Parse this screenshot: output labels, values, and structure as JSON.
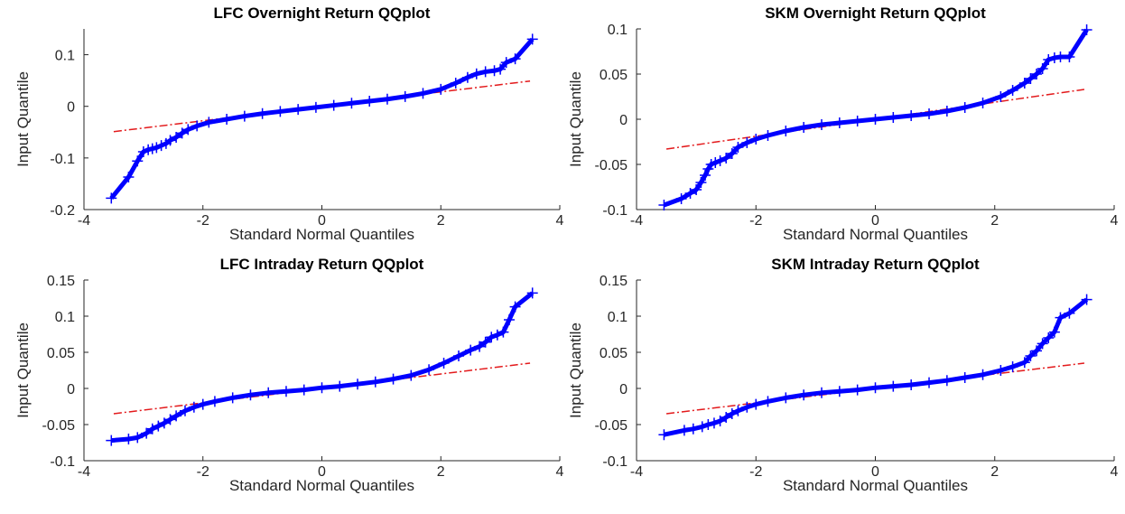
{
  "chart_data": [
    {
      "type": "scatter",
      "title": "LFC Overnight Return QQplot",
      "xlabel": "Standard Normal Quantiles",
      "ylabel": "Input Quantile",
      "xlim": [
        -4,
        4
      ],
      "ylim": [
        -0.2,
        0.15
      ],
      "xticks": [
        -4,
        -2,
        0,
        2,
        4
      ],
      "xtick_labels": [
        "-4",
        "-2",
        "0",
        "2",
        "4"
      ],
      "yticks": [
        -0.2,
        -0.1,
        0,
        0.1
      ],
      "ytick_labels": [
        "-0.2",
        "-0.1",
        "0",
        "0.1"
      ],
      "reference_line": {
        "x": [
          -3.5,
          3.5
        ],
        "y": [
          -0.049,
          0.049
        ]
      },
      "series": [
        {
          "marker": "+",
          "x": [
            -3.54,
            -3.25,
            -3.1,
            -3.0,
            -2.92,
            -2.85,
            -2.78,
            -2.7,
            -2.62,
            -2.55,
            -2.45,
            -2.35,
            -2.25,
            -2.1,
            -1.9,
            -1.6,
            -1.3,
            -1.0,
            -0.7,
            -0.4,
            -0.1,
            0.2,
            0.5,
            0.8,
            1.1,
            1.4,
            1.7,
            2.0,
            2.25,
            2.45,
            2.6,
            2.75,
            2.9,
            3.0,
            3.1,
            3.25,
            3.54
          ],
          "y": [
            -0.178,
            -0.137,
            -0.106,
            -0.088,
            -0.084,
            -0.082,
            -0.08,
            -0.076,
            -0.072,
            -0.066,
            -0.06,
            -0.052,
            -0.045,
            -0.038,
            -0.031,
            -0.025,
            -0.019,
            -0.014,
            -0.01,
            -0.006,
            -0.002,
            0.002,
            0.006,
            0.01,
            0.014,
            0.019,
            0.025,
            0.033,
            0.045,
            0.056,
            0.063,
            0.067,
            0.069,
            0.072,
            0.085,
            0.092,
            0.13
          ]
        }
      ],
      "colors": {
        "marker": "#0000ff",
        "reference": "#e31a1c"
      }
    },
    {
      "type": "scatter",
      "title": "SKM Overnight Return QQplot",
      "xlabel": "Standard Normal Quantiles",
      "ylabel": "Input Quantile",
      "xlim": [
        -4,
        4
      ],
      "ylim": [
        -0.1,
        0.1
      ],
      "xticks": [
        -4,
        -2,
        0,
        2,
        4
      ],
      "xtick_labels": [
        "-4",
        "-2",
        "0",
        "2",
        "4"
      ],
      "yticks": [
        -0.1,
        -0.05,
        0,
        0.05,
        0.1
      ],
      "ytick_labels": [
        "-0.1",
        "-0.05",
        "0",
        "0.05",
        "0.1"
      ],
      "reference_line": {
        "x": [
          -3.5,
          3.5
        ],
        "y": [
          -0.033,
          0.033
        ]
      },
      "series": [
        {
          "marker": "+",
          "x": [
            -3.54,
            -3.25,
            -3.1,
            -3.0,
            -2.92,
            -2.85,
            -2.8,
            -2.75,
            -2.68,
            -2.6,
            -2.5,
            -2.4,
            -2.3,
            -2.15,
            -2.0,
            -1.8,
            -1.5,
            -1.2,
            -0.9,
            -0.6,
            -0.3,
            0.0,
            0.3,
            0.6,
            0.9,
            1.2,
            1.5,
            1.8,
            2.1,
            2.3,
            2.5,
            2.6,
            2.7,
            2.8,
            2.9,
            3.0,
            3.1,
            3.25,
            3.54
          ],
          "y": [
            -0.095,
            -0.088,
            -0.082,
            -0.078,
            -0.07,
            -0.062,
            -0.055,
            -0.05,
            -0.048,
            -0.046,
            -0.043,
            -0.038,
            -0.031,
            -0.026,
            -0.022,
            -0.018,
            -0.013,
            -0.009,
            -0.006,
            -0.004,
            -0.002,
            0.0,
            0.002,
            0.004,
            0.006,
            0.009,
            0.013,
            0.018,
            0.025,
            0.032,
            0.04,
            0.045,
            0.05,
            0.056,
            0.066,
            0.068,
            0.069,
            0.069,
            0.099
          ]
        }
      ],
      "colors": {
        "marker": "#0000ff",
        "reference": "#e31a1c"
      }
    },
    {
      "type": "scatter",
      "title": "LFC Intraday Return QQplot",
      "xlabel": "Standard Normal Quantiles",
      "ylabel": "Input Quantile",
      "xlim": [
        -4,
        4
      ],
      "ylim": [
        -0.1,
        0.15
      ],
      "xticks": [
        -4,
        -2,
        0,
        2,
        4
      ],
      "xtick_labels": [
        "-4",
        "-2",
        "0",
        "2",
        "4"
      ],
      "yticks": [
        -0.1,
        -0.05,
        0,
        0.05,
        0.1,
        0.15
      ],
      "ytick_labels": [
        "-0.1",
        "-0.05",
        "0",
        "0.05",
        "0.1",
        "0.15"
      ],
      "reference_line": {
        "x": [
          -3.5,
          3.5
        ],
        "y": [
          -0.035,
          0.035
        ]
      },
      "series": [
        {
          "marker": "+",
          "x": [
            -3.54,
            -3.25,
            -3.1,
            -2.95,
            -2.85,
            -2.75,
            -2.65,
            -2.55,
            -2.45,
            -2.3,
            -2.15,
            -2.0,
            -1.8,
            -1.5,
            -1.2,
            -0.9,
            -0.6,
            -0.3,
            0.0,
            0.3,
            0.6,
            0.9,
            1.2,
            1.5,
            1.8,
            2.05,
            2.3,
            2.5,
            2.65,
            2.75,
            2.85,
            2.95,
            3.05,
            3.15,
            3.25,
            3.54
          ],
          "y": [
            -0.072,
            -0.07,
            -0.068,
            -0.062,
            -0.056,
            -0.052,
            -0.048,
            -0.043,
            -0.038,
            -0.031,
            -0.026,
            -0.022,
            -0.018,
            -0.013,
            -0.009,
            -0.006,
            -0.004,
            -0.002,
            0.001,
            0.003,
            0.006,
            0.009,
            0.013,
            0.018,
            0.026,
            0.035,
            0.045,
            0.053,
            0.058,
            0.064,
            0.071,
            0.074,
            0.078,
            0.095,
            0.113,
            0.132
          ]
        }
      ],
      "colors": {
        "marker": "#0000ff",
        "reference": "#e31a1c"
      }
    },
    {
      "type": "scatter",
      "title": "SKM Intraday Return QQplot",
      "xlabel": "Standard Normal Quantiles",
      "ylabel": "Input Quantile",
      "xlim": [
        -4,
        4
      ],
      "ylim": [
        -0.1,
        0.15
      ],
      "xticks": [
        -4,
        -2,
        0,
        2,
        4
      ],
      "xtick_labels": [
        "-4",
        "-2",
        "0",
        "2",
        "4"
      ],
      "yticks": [
        -0.1,
        -0.05,
        0,
        0.05,
        0.1,
        0.15
      ],
      "ytick_labels": [
        "-0.1",
        "-0.05",
        "0",
        "0.05",
        "0.1",
        "0.15"
      ],
      "reference_line": {
        "x": [
          -3.5,
          3.5
        ],
        "y": [
          -0.035,
          0.035
        ]
      },
      "series": [
        {
          "marker": "+",
          "x": [
            -3.54,
            -3.2,
            -3.05,
            -2.9,
            -2.8,
            -2.7,
            -2.6,
            -2.5,
            -2.4,
            -2.3,
            -2.15,
            -2.0,
            -1.8,
            -1.5,
            -1.2,
            -0.9,
            -0.6,
            -0.3,
            0.0,
            0.3,
            0.6,
            0.9,
            1.2,
            1.5,
            1.8,
            2.1,
            2.3,
            2.5,
            2.6,
            2.7,
            2.8,
            2.9,
            3.0,
            3.1,
            3.25,
            3.54
          ],
          "y": [
            -0.064,
            -0.058,
            -0.056,
            -0.053,
            -0.05,
            -0.048,
            -0.045,
            -0.04,
            -0.035,
            -0.031,
            -0.026,
            -0.022,
            -0.018,
            -0.013,
            -0.009,
            -0.006,
            -0.004,
            -0.002,
            0.001,
            0.003,
            0.005,
            0.008,
            0.011,
            0.015,
            0.019,
            0.025,
            0.03,
            0.036,
            0.045,
            0.052,
            0.062,
            0.07,
            0.078,
            0.098,
            0.104,
            0.123
          ]
        }
      ],
      "colors": {
        "marker": "#0000ff",
        "reference": "#e31a1c"
      }
    }
  ]
}
